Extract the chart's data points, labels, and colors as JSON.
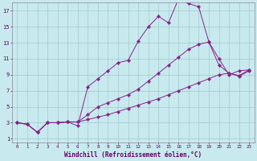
{
  "xlabel": "Windchill (Refroidissement éolien,°C)",
  "bg_color": "#c8eaee",
  "grid_color": "#a0c8cc",
  "line_color": "#882288",
  "xlim": [
    -0.5,
    23.5
  ],
  "ylim": [
    0.5,
    18.0
  ],
  "xticks": [
    0,
    1,
    2,
    3,
    4,
    5,
    6,
    7,
    8,
    9,
    10,
    11,
    12,
    13,
    14,
    15,
    16,
    17,
    18,
    19,
    20,
    21,
    22,
    23
  ],
  "yticks": [
    1,
    3,
    5,
    7,
    9,
    11,
    13,
    15,
    17
  ],
  "line1_x": [
    0,
    1,
    2,
    3,
    4,
    5,
    6,
    7,
    8,
    9,
    10,
    11,
    12,
    13,
    14,
    15,
    16,
    17,
    18,
    19,
    20,
    21,
    22,
    23
  ],
  "line1_y": [
    3.0,
    2.8,
    1.8,
    3.0,
    3.0,
    3.1,
    3.1,
    3.4,
    3.7,
    4.0,
    4.4,
    4.8,
    5.2,
    5.6,
    6.0,
    6.5,
    7.0,
    7.5,
    8.0,
    8.5,
    9.0,
    9.2,
    8.8,
    9.5
  ],
  "line2_x": [
    0,
    1,
    2,
    3,
    4,
    5,
    6,
    7,
    8,
    9,
    10,
    11,
    12,
    13,
    14,
    15,
    16,
    17,
    18,
    19,
    20,
    21,
    22,
    23
  ],
  "line2_y": [
    3.0,
    2.8,
    1.8,
    3.0,
    3.0,
    3.1,
    2.6,
    7.5,
    8.5,
    9.5,
    10.5,
    10.8,
    13.2,
    15.0,
    16.3,
    15.5,
    18.5,
    17.9,
    17.5,
    13.1,
    11.0,
    9.0,
    9.5,
    9.6
  ],
  "line3_x": [
    0,
    1,
    2,
    3,
    4,
    5,
    6,
    7,
    8,
    9,
    10,
    11,
    12,
    13,
    14,
    15,
    16,
    17,
    18,
    19,
    20,
    21,
    22,
    23
  ],
  "line3_y": [
    3.0,
    2.8,
    1.8,
    3.0,
    3.0,
    3.1,
    3.1,
    4.0,
    5.0,
    5.5,
    6.0,
    6.5,
    7.2,
    8.2,
    9.2,
    10.2,
    11.2,
    12.2,
    12.8,
    13.1,
    10.2,
    9.2,
    8.9,
    9.6
  ]
}
